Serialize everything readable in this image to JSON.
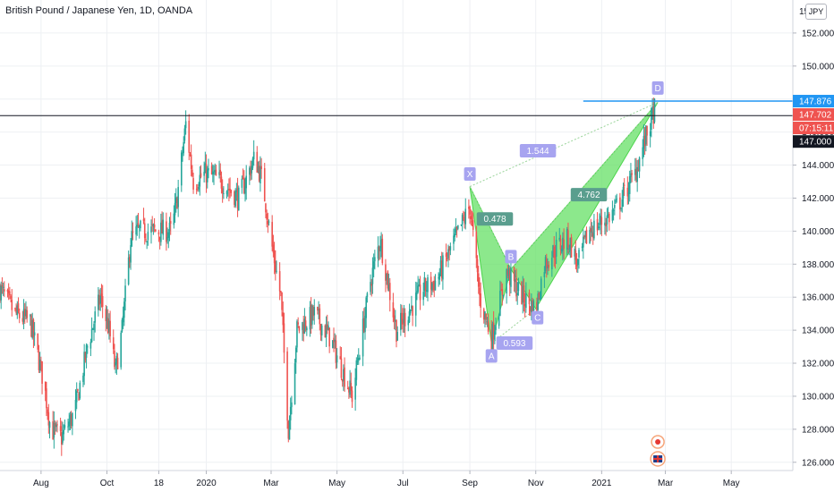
{
  "header": {
    "title": "British Pound / Japanese Yen, 1D, OANDA",
    "currency": "JPY"
  },
  "price_labels": {
    "level": "147.876",
    "last": "147.702",
    "countdown": "07:15:11",
    "hline": "147.000"
  },
  "chart_data": {
    "type": "candlestick",
    "title": "British Pound / Japanese Yen, 1D, OANDA",
    "x_ticks": [
      "Aug",
      "Oct",
      "18",
      "2020",
      "Mar",
      "May",
      "Jul",
      "Sep",
      "Nov",
      "2021",
      "Mar",
      "May"
    ],
    "y_ticks": [
      126,
      128,
      130,
      132,
      134,
      136,
      138,
      140,
      142,
      144,
      146,
      148,
      150,
      152
    ],
    "y_range": [
      125.5,
      154
    ],
    "top_tick_partial": "15",
    "price_path": [
      {
        "d": "2019-06-24",
        "p": 136.5
      },
      {
        "d": "2019-07-08",
        "p": 135
      },
      {
        "d": "2019-07-22",
        "p": 134.5
      },
      {
        "d": "2019-08-03",
        "p": 131
      },
      {
        "d": "2019-08-10",
        "p": 128
      },
      {
        "d": "2019-08-20",
        "p": 127.5
      },
      {
        "d": "2019-09-01",
        "p": 129
      },
      {
        "d": "2019-09-13",
        "p": 133
      },
      {
        "d": "2019-09-25",
        "p": 136
      },
      {
        "d": "2019-10-03",
        "p": 134
      },
      {
        "d": "2019-10-09",
        "p": 131.5
      },
      {
        "d": "2019-10-15",
        "p": 134
      },
      {
        "d": "2019-10-23",
        "p": 139.5
      },
      {
        "d": "2019-10-30",
        "p": 140
      },
      {
        "d": "2019-11-15",
        "p": 140
      },
      {
        "d": "2019-11-30",
        "p": 140
      },
      {
        "d": "2019-12-05",
        "p": 142
      },
      {
        "d": "2019-12-13",
        "p": 146.5
      },
      {
        "d": "2019-12-20",
        "p": 143
      },
      {
        "d": "2020-01-01",
        "p": 143.5
      },
      {
        "d": "2020-01-15",
        "p": 143
      },
      {
        "d": "2020-01-31",
        "p": 142
      },
      {
        "d": "2020-02-15",
        "p": 144.5
      },
      {
        "d": "2020-02-22",
        "p": 143
      },
      {
        "d": "2020-03-02",
        "p": 139
      },
      {
        "d": "2020-03-10",
        "p": 136
      },
      {
        "d": "2020-03-17",
        "p": 128
      },
      {
        "d": "2020-03-25",
        "p": 134
      },
      {
        "d": "2020-04-10",
        "p": 135
      },
      {
        "d": "2020-04-25",
        "p": 133.5
      },
      {
        "d": "2020-05-15",
        "p": 130
      },
      {
        "d": "2020-06-01",
        "p": 137
      },
      {
        "d": "2020-06-10",
        "p": 139.5
      },
      {
        "d": "2020-06-25",
        "p": 134
      },
      {
        "d": "2020-07-05",
        "p": 135
      },
      {
        "d": "2020-07-20",
        "p": 136.5
      },
      {
        "d": "2020-08-01",
        "p": 137
      },
      {
        "d": "2020-08-15",
        "p": 139
      },
      {
        "d": "2020-09-01",
        "p": 141.5
      },
      {
        "d": "2020-09-10",
        "p": 136
      },
      {
        "d": "2020-09-21",
        "p": 133.5
      },
      {
        "d": "2020-10-05",
        "p": 137.5
      },
      {
        "d": "2020-10-20",
        "p": 136
      },
      {
        "d": "2020-11-01",
        "p": 135.2
      },
      {
        "d": "2020-11-09",
        "p": 138
      },
      {
        "d": "2020-11-20",
        "p": 139
      },
      {
        "d": "2020-12-01",
        "p": 139.5
      },
      {
        "d": "2020-12-10",
        "p": 138
      },
      {
        "d": "2020-12-20",
        "p": 140
      },
      {
        "d": "2020-12-31",
        "p": 140.5
      },
      {
        "d": "2021-01-10",
        "p": 141
      },
      {
        "d": "2021-01-20",
        "p": 142
      },
      {
        "d": "2021-02-01",
        "p": 143.5
      },
      {
        "d": "2021-02-10",
        "p": 145.5
      },
      {
        "d": "2021-02-20",
        "p": 147.6
      }
    ],
    "horizontal_lines": [
      {
        "price": 147.0,
        "color": "#131722"
      },
      {
        "price": 147.876,
        "color": "#2196f3"
      }
    ],
    "harmonic_pattern": {
      "points": [
        {
          "label": "X",
          "d": "2020-09-01",
          "p": 142.7
        },
        {
          "label": "A",
          "d": "2020-09-21",
          "p": 133.2
        },
        {
          "label": "B",
          "d": "2020-10-09",
          "p": 137.7
        },
        {
          "label": "C",
          "d": "2020-11-01",
          "p": 135.3
        },
        {
          "label": "D",
          "d": "2021-02-22",
          "p": 147.8
        }
      ],
      "ratios": [
        "0.478",
        "0.593",
        "4.762",
        "1.544"
      ],
      "fill": "#66e066"
    },
    "colors": {
      "up": "#26a69a",
      "down": "#ef5350",
      "level": "#2196f3",
      "last": "#ef5350",
      "hline": "#131722"
    }
  }
}
